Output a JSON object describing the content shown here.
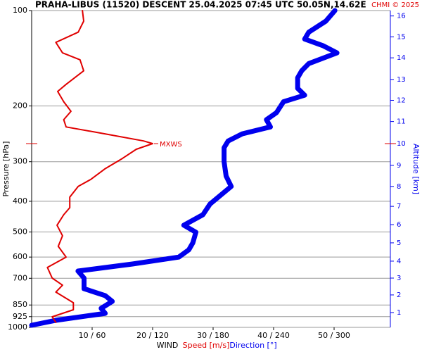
{
  "chart_data": {
    "type": "profile",
    "title": "PRAHA-LIBUS (11520)   DESCENT   25.04.2025 07:45 UTC  50.05N,14.62E",
    "copyright": "CHMI © 2025",
    "ylabel": "Pressure [hPa]",
    "y2label": "Altitude [km]",
    "xlabel": "WIND",
    "ylog": true,
    "ylim": [
      1000,
      100
    ],
    "yticks": [
      100,
      200,
      300,
      400,
      500,
      600,
      700,
      850,
      925,
      1000
    ],
    "y2ticks": [
      1,
      2,
      3,
      4,
      5,
      6,
      7,
      8,
      9,
      10,
      11,
      12,
      13,
      14,
      15,
      16
    ],
    "y2tick_pressure": [
      898,
      790,
      699,
      618,
      541,
      474,
      415,
      359,
      308,
      263,
      224,
      192,
      165,
      141,
      121,
      104
    ],
    "xlim": [
      0,
      59.3
    ],
    "x2lim": [
      0,
      356
    ],
    "xticks": [
      {
        "value": 10,
        "label": "10 / 60"
      },
      {
        "value": 20,
        "label": "20 / 120"
      },
      {
        "value": 30,
        "label": "30 / 180"
      },
      {
        "value": 40,
        "label": "40 / 240"
      },
      {
        "value": 50,
        "label": "50 / 300"
      }
    ],
    "grid": true,
    "series": [
      {
        "name": "Speed [m/s]",
        "color": "#e00000",
        "axis": "x",
        "pressure": [
          100,
          108,
          117,
          126,
          136,
          143,
          155,
          171,
          180,
          194,
          208,
          221,
          233,
          245,
          258,
          263,
          274,
          293,
          316,
          341,
          359,
          388,
          419,
          441,
          476,
          514,
          555,
          600,
          647,
          699,
          736,
          774,
          836,
          880,
          926,
          965
        ],
        "values": [
          8.4,
          8.6,
          7.7,
          4.0,
          5.1,
          8.0,
          8.6,
          5.7,
          4.3,
          5.3,
          6.5,
          5.3,
          5.7,
          12.1,
          18.5,
          20.0,
          17.3,
          15.0,
          12.1,
          9.8,
          7.7,
          6.3,
          6.3,
          5.3,
          4.2,
          5.1,
          4.4,
          5.7,
          2.6,
          3.4,
          5.1,
          4.0,
          6.9,
          6.9,
          3.4,
          4.0
        ]
      },
      {
        "name": "Direction [°]",
        "color": "#0000ee",
        "axis": "x2",
        "pressure": [
          100,
          108,
          117,
          123,
          129,
          136,
          147,
          155,
          163,
          176,
          185,
          194,
          210,
          221,
          233,
          245,
          258,
          271,
          300,
          333,
          359,
          408,
          441,
          476,
          501,
          541,
          569,
          600,
          631,
          664,
          699,
          755,
          794,
          828,
          871,
          903,
          950,
          985
        ],
        "values": [
          301,
          292,
          275,
          271,
          289,
          303,
          275,
          268,
          264,
          264,
          271,
          250,
          243,
          233,
          237,
          209,
          195,
          191,
          191,
          193,
          198,
          177,
          170,
          151,
          163,
          160,
          156,
          146,
          100,
          46,
          52,
          52,
          73,
          80,
          69,
          73,
          24,
          0
        ]
      }
    ],
    "annotation": {
      "text": "MXWS",
      "pressure": 263
    }
  }
}
